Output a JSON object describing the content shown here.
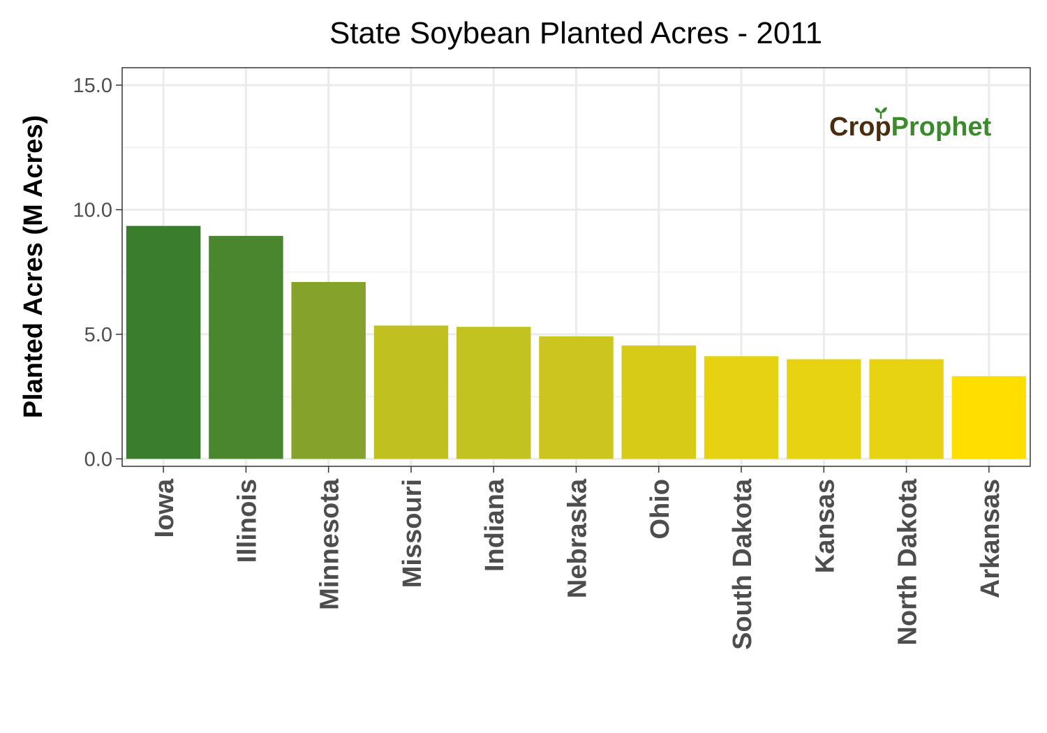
{
  "chart_data": {
    "type": "bar",
    "title": "State Soybean Planted Acres - 2011",
    "xlabel": "",
    "ylabel": "Planted Acres (M Acres)",
    "ylim": [
      -0.3,
      15.7
    ],
    "yticks": [
      "0.0",
      "5.0",
      "10.0",
      "15.0"
    ],
    "ytick_values": [
      0,
      5,
      10,
      15
    ],
    "grid": true,
    "legend": "none",
    "categories": [
      "Iowa",
      "Illinois",
      "Minnesota",
      "Missouri",
      "Indiana",
      "Nebraska",
      "Ohio",
      "South Dakota",
      "Kansas",
      "North Dakota",
      "Arkansas"
    ],
    "values": [
      9.35,
      8.95,
      7.1,
      5.35,
      5.3,
      4.92,
      4.55,
      4.12,
      4.0,
      4.0,
      3.32
    ],
    "colors": [
      "#3a7d2c",
      "#4a862e",
      "#85a32b",
      "#c0c020",
      "#c2c221",
      "#cdc51f",
      "#d8cb18",
      "#e6d212",
      "#e8d313",
      "#e8d313",
      "#ffde00"
    ]
  },
  "logo": {
    "part1": "Cr",
    "part2": "p",
    "part3": "Prophet",
    "brown": "#4a2c10",
    "green": "#3b8a2c"
  }
}
